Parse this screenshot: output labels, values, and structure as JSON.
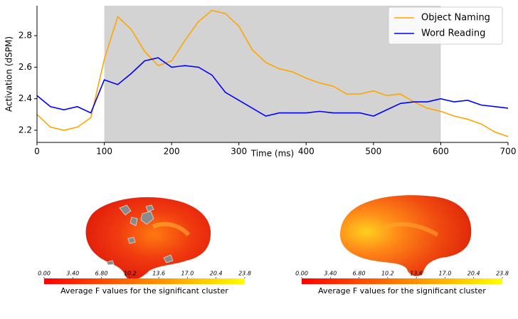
{
  "chart_data": [
    {
      "type": "line",
      "xlabel": "Time (ms)",
      "ylabel": "Activation (dSPM)",
      "x": [
        0,
        20,
        40,
        60,
        80,
        100,
        120,
        140,
        160,
        180,
        200,
        220,
        240,
        260,
        280,
        300,
        320,
        340,
        360,
        380,
        400,
        420,
        440,
        460,
        480,
        500,
        520,
        540,
        560,
        580,
        600,
        620,
        640,
        660,
        680,
        700
      ],
      "series": [
        {
          "name": "Object Naming",
          "color": "#ffa500",
          "values": [
            2.3,
            2.22,
            2.2,
            2.22,
            2.28,
            2.65,
            2.92,
            2.84,
            2.7,
            2.61,
            2.64,
            2.77,
            2.89,
            2.96,
            2.94,
            2.86,
            2.71,
            2.63,
            2.59,
            2.57,
            2.53,
            2.5,
            2.48,
            2.43,
            2.43,
            2.45,
            2.42,
            2.43,
            2.38,
            2.34,
            2.32,
            2.29,
            2.27,
            2.24,
            2.19,
            2.16
          ]
        },
        {
          "name": "Word Reading",
          "color": "#0000ff",
          "values": [
            2.42,
            2.35,
            2.33,
            2.35,
            2.31,
            2.52,
            2.49,
            2.56,
            2.64,
            2.66,
            2.6,
            2.61,
            2.6,
            2.55,
            2.44,
            2.39,
            2.34,
            2.29,
            2.31,
            2.31,
            2.31,
            2.32,
            2.31,
            2.31,
            2.31,
            2.29,
            2.33,
            2.37,
            2.38,
            2.38,
            2.4,
            2.38,
            2.39,
            2.36,
            2.35,
            2.34
          ]
        }
      ],
      "highlight": [
        100,
        600
      ],
      "highlight_color": "#d3d3d3",
      "xlim": [
        0,
        700
      ],
      "xticks": [
        0,
        100,
        200,
        300,
        400,
        500,
        600,
        700
      ],
      "ylim": [
        2.123,
        2.99
      ],
      "yticks": [
        2.2,
        2.4,
        2.6,
        2.8
      ],
      "legend": "upper right"
    },
    {
      "type": "colorbar",
      "colors": [
        "#ff0000",
        "#ffff00"
      ],
      "xlabel": "Average F values for the significant cluster",
      "xlim": [
        0,
        23.8
      ],
      "xticks": [
        {
          "value": 0,
          "label": "0.00"
        },
        {
          "value": 3.4,
          "label": "3.40"
        },
        {
          "value": 6.8,
          "label": "6.80"
        },
        {
          "value": 10.2,
          "label": "10.2"
        },
        {
          "value": 13.6,
          "label": "13.6"
        },
        {
          "value": 17,
          "label": "17.0"
        },
        {
          "value": 20.4,
          "label": "20.4"
        },
        {
          "value": 23.8,
          "label": "23.8"
        }
      ]
    },
    {
      "type": "colorbar",
      "colors": [
        "#ff0000",
        "#ffff00"
      ],
      "xlabel": "Average F values for the significant cluster",
      "xlim": [
        0,
        23.8
      ],
      "xticks": [
        {
          "value": 0,
          "label": "0.00"
        },
        {
          "value": 3.4,
          "label": "3.40"
        },
        {
          "value": 6.8,
          "label": "6.80"
        },
        {
          "value": 10.2,
          "label": "10.2"
        },
        {
          "value": 13.6,
          "label": "13.6"
        },
        {
          "value": 17,
          "label": "17.0"
        },
        {
          "value": 20.4,
          "label": "20.4"
        },
        {
          "value": 23.8,
          "label": "23.8"
        }
      ]
    }
  ]
}
